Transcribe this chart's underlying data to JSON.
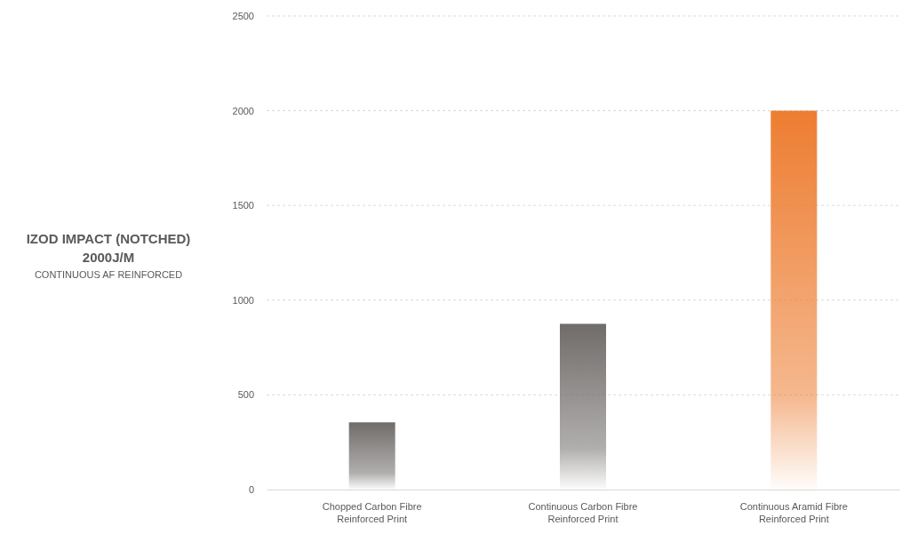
{
  "chart_data": {
    "type": "bar",
    "title": "IZOD IMPACT (NOTCHED)",
    "subtitle": "2000J/M",
    "annotations": [
      "CONTINUOUS AF REINFORCED"
    ],
    "categories": [
      "Chopped Carbon Fibre\nReinforced Print",
      "Continuous Carbon Fibre\nReinforced Print",
      "Continuous Aramid Fibre\nReinforced Print"
    ],
    "values": [
      355,
      875,
      2000
    ],
    "colors": [
      "#706c6a",
      "#706c6a",
      "#ed7d31"
    ],
    "ylim": [
      0,
      2500
    ],
    "yticks": [
      0,
      500,
      1000,
      1500,
      2000,
      2500
    ],
    "grid": "y"
  }
}
